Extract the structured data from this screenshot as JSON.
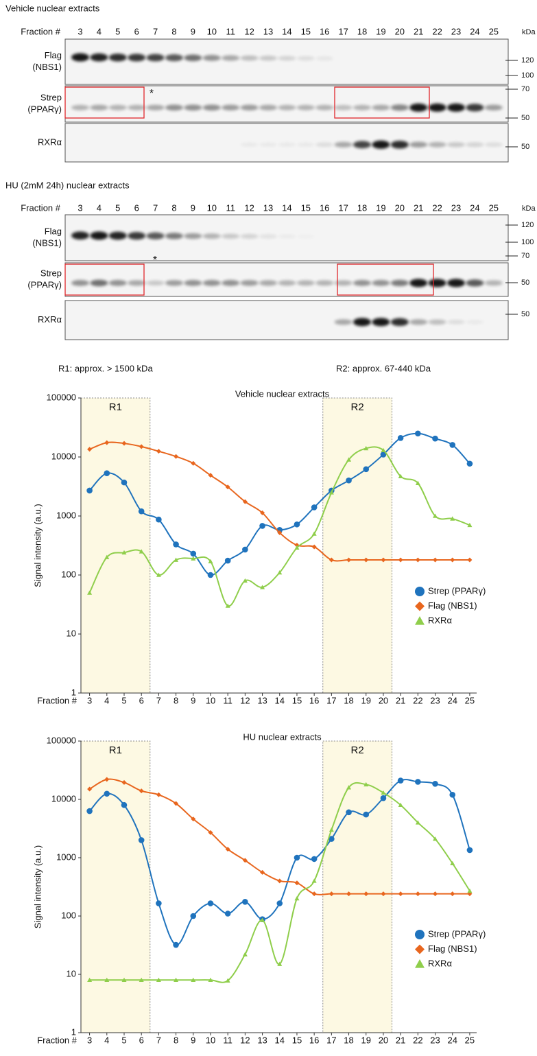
{
  "blots": [
    {
      "title": "Vehicle nuclear extracts",
      "fraction_label": "Fraction #",
      "fractions": [
        3,
        4,
        5,
        6,
        7,
        8,
        9,
        10,
        11,
        12,
        13,
        14,
        15,
        16,
        17,
        18,
        19,
        20,
        21,
        22,
        23,
        24,
        25
      ],
      "unit": "kDa",
      "panels": [
        {
          "label": [
            "Flag",
            "(NBS1)"
          ],
          "markers": [
            120,
            100
          ]
        },
        {
          "label": [
            "Strep",
            "(PPARγ)"
          ],
          "markers": [
            70,
            50
          ]
        },
        {
          "label": [
            "RXRα"
          ],
          "markers": [
            50
          ]
        }
      ],
      "asterisk": "*"
    },
    {
      "title": "HU (2mM 24h) nuclear extracts",
      "fraction_label": "Fraction #",
      "fractions": [
        3,
        4,
        5,
        6,
        7,
        8,
        9,
        10,
        11,
        12,
        13,
        14,
        15,
        16,
        17,
        18,
        19,
        20,
        21,
        22,
        23,
        24,
        25
      ],
      "unit": "kDa",
      "panels": [
        {
          "label": [
            "Flag",
            "(NBS1)"
          ],
          "markers": [
            120,
            100,
            70
          ]
        },
        {
          "label": [
            "Strep",
            "(PPARγ)"
          ],
          "markers": [
            50
          ]
        },
        {
          "label": [
            "RXRα"
          ],
          "markers": [
            50
          ]
        }
      ],
      "asterisk": "*"
    }
  ],
  "region_notes": [
    "R1: approx. > 1500 kDa",
    "R2: approx. 67-440 kDa"
  ],
  "chart_data": [
    {
      "type": "line",
      "title": "Vehicle nuclear extracts",
      "x_label": "Fraction #",
      "y_label": "Signal intensity (a.u.)",
      "x": [
        3,
        4,
        5,
        6,
        7,
        8,
        9,
        10,
        11,
        12,
        13,
        14,
        15,
        16,
        17,
        18,
        19,
        20,
        21,
        22,
        23,
        24,
        25
      ],
      "xlim": [
        2.5,
        25.4
      ],
      "xticks": [
        3,
        4,
        5,
        6,
        7,
        8,
        9,
        10,
        11,
        12,
        13,
        14,
        15,
        16,
        17,
        18,
        19,
        20,
        21,
        22,
        23,
        24,
        25
      ],
      "ylim": [
        1,
        100000
      ],
      "yticks": [
        1,
        10,
        100,
        1000,
        10000,
        100000
      ],
      "log_scale": true,
      "legend": "right",
      "regions": [
        {
          "label": "R1",
          "x": [
            2.5,
            6.5
          ],
          "color": "#fdf9e3"
        },
        {
          "label": "R2",
          "x": [
            16.5,
            20.5
          ],
          "color": "#fdf9e3"
        }
      ],
      "series": [
        {
          "name": "Strep (PPARγ)",
          "color": "#1f73bd",
          "marker": "circle",
          "values": [
            2700,
            5300,
            3700,
            1200,
            870,
            330,
            230,
            100,
            175,
            270,
            680,
            580,
            720,
            1400,
            2700,
            4000,
            6200,
            11000,
            21000,
            25000,
            20500,
            16000,
            7700
          ]
        },
        {
          "name": "Flag (NBS1)",
          "color": "#e8661e",
          "marker": "diamond",
          "values": [
            13500,
            17500,
            17000,
            15000,
            12500,
            10200,
            7800,
            4900,
            3100,
            1750,
            1130,
            520,
            320,
            300,
            180,
            180,
            180,
            180,
            180,
            180,
            180,
            180,
            180
          ]
        },
        {
          "name": "RXRα",
          "color": "#8fce4b",
          "marker": "triangle",
          "values": [
            50,
            200,
            240,
            250,
            100,
            180,
            190,
            170,
            30,
            80,
            62,
            110,
            290,
            500,
            2500,
            9000,
            14000,
            13000,
            4700,
            3600,
            1000,
            900,
            700
          ]
        }
      ]
    },
    {
      "type": "line",
      "title": "HU nuclear extracts",
      "x_label": "Fraction #",
      "y_label": "Signal intensity (a.u.)",
      "x": [
        3,
        4,
        5,
        6,
        7,
        8,
        9,
        10,
        11,
        12,
        13,
        14,
        15,
        16,
        17,
        18,
        19,
        20,
        21,
        22,
        23,
        24,
        25
      ],
      "xlim": [
        2.5,
        25.4
      ],
      "xticks": [
        3,
        4,
        5,
        6,
        7,
        8,
        9,
        10,
        11,
        12,
        13,
        14,
        15,
        16,
        17,
        18,
        19,
        20,
        21,
        22,
        23,
        24,
        25
      ],
      "ylim": [
        1,
        100000
      ],
      "yticks": [
        1,
        10,
        100,
        1000,
        10000,
        100000
      ],
      "log_scale": true,
      "legend": "right",
      "regions": [
        {
          "label": "R1",
          "x": [
            2.5,
            6.5
          ],
          "color": "#fdf9e3"
        },
        {
          "label": "R2",
          "x": [
            16.5,
            20.5
          ],
          "color": "#fdf9e3"
        }
      ],
      "series": [
        {
          "name": "Strep (PPARγ)",
          "color": "#1f73bd",
          "marker": "circle",
          "values": [
            6300,
            12500,
            8000,
            2000,
            165,
            32,
            100,
            165,
            110,
            175,
            88,
            165,
            1000,
            950,
            2100,
            6000,
            5500,
            10500,
            21000,
            20000,
            18500,
            12000,
            1350
          ]
        },
        {
          "name": "Flag (NBS1)",
          "color": "#e8661e",
          "marker": "diamond",
          "values": [
            15000,
            22000,
            19500,
            14000,
            12000,
            8500,
            4600,
            2700,
            1400,
            900,
            560,
            400,
            370,
            240,
            240,
            240,
            240,
            240,
            240,
            240,
            240,
            240,
            240
          ]
        },
        {
          "name": "RXRα",
          "color": "#8fce4b",
          "marker": "triangle",
          "values": [
            8,
            8,
            8,
            8,
            8,
            8,
            8,
            8,
            7.8,
            22,
            85,
            15,
            200,
            400,
            3000,
            16000,
            18000,
            13000,
            8000,
            4000,
            2100,
            800,
            270
          ]
        }
      ]
    }
  ]
}
